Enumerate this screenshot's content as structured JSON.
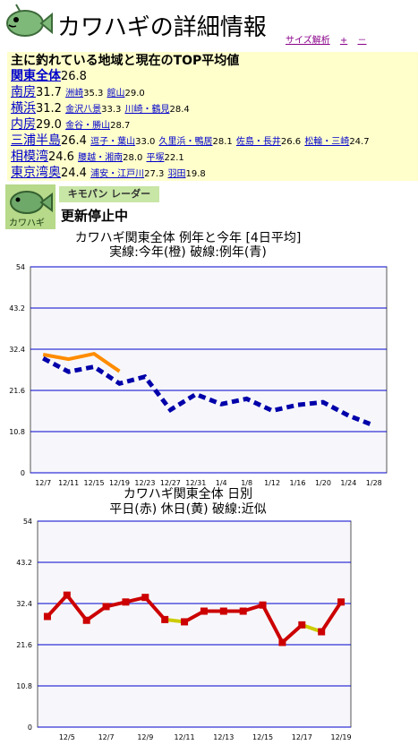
{
  "header": {
    "title": "カワハギの詳細情報",
    "links": [
      "サイズ解析",
      "+",
      "－"
    ]
  },
  "summary": {
    "heading": "主に釣れている地域と現在のTOP平均値",
    "rows": [
      {
        "area": "関東全体",
        "value": "26.8",
        "subs": []
      },
      {
        "area": "南房",
        "value": "31.7",
        "subs": [
          {
            "name": "洲崎",
            "value": "35.3"
          },
          {
            "name": "館山",
            "value": "29.0"
          }
        ]
      },
      {
        "area": "横浜",
        "value": "31.2",
        "subs": [
          {
            "name": "金沢八景",
            "value": "33.3"
          },
          {
            "name": "川崎・鶴見",
            "value": "28.4"
          }
        ]
      },
      {
        "area": "内房",
        "value": "29.0",
        "subs": [
          {
            "name": "金谷・勝山",
            "value": "28.7"
          }
        ]
      },
      {
        "area": "三浦半島",
        "value": "26.4",
        "subs": [
          {
            "name": "逗子・葉山",
            "value": "33.0"
          },
          {
            "name": "久里浜・鴨居",
            "value": "28.1"
          },
          {
            "name": "佐島・長井",
            "value": "26.6"
          },
          {
            "name": "松輪・三崎",
            "value": "24.7"
          }
        ]
      },
      {
        "area": "相模湾",
        "value": "24.6",
        "subs": [
          {
            "name": "腰越・湘南",
            "value": "28.0"
          },
          {
            "name": "平塚",
            "value": "22.1"
          }
        ]
      },
      {
        "area": "東京湾奥",
        "value": "24.4",
        "subs": [
          {
            "name": "浦安・江戸川",
            "value": "27.3"
          },
          {
            "name": "羽田",
            "value": "19.8"
          }
        ]
      }
    ]
  },
  "radar": {
    "logo_text": "カワハギ",
    "title": "キモパン レーダー",
    "status": "更新停止中"
  },
  "chart_data": [
    {
      "type": "line",
      "title": "カワハギ関東全体 例年と今年 [4日平均]",
      "subtitle": "実線:今年(橙) 破線:例年(青)",
      "ylim": [
        0,
        54
      ],
      "yticks": [
        "0",
        "10.8",
        "21.6",
        "32.4",
        "43.2",
        "54"
      ],
      "xticks": [
        "12/7",
        "12/11",
        "12/15",
        "12/19",
        "12/23",
        "12/27",
        "12/31",
        "1/4",
        "1/8",
        "1/12",
        "1/16",
        "1/20",
        "1/24",
        "1/28"
      ],
      "grid": true,
      "series": [
        {
          "style": "solid",
          "color": "#ff8c00",
          "values": [
            31.0,
            29.8,
            31.2,
            26.6
          ]
        },
        {
          "style": "dashed",
          "color": "#0000aa",
          "values": [
            30.0,
            26.5,
            27.8,
            23.4,
            25.2,
            16.5,
            20.6,
            18.0,
            19.4,
            16.3,
            17.8,
            18.5,
            15.0,
            12.4
          ]
        }
      ]
    },
    {
      "type": "line",
      "title": "カワハギ関東全体 日別",
      "subtitle": "平日(赤) 休日(黄) 破線:近似",
      "ylim": [
        0,
        54
      ],
      "yticks": [
        "0",
        "10.8",
        "21.6",
        "32.4",
        "43.2",
        "54"
      ],
      "xticks": [
        "12/5",
        "12/7",
        "12/9",
        "12/11",
        "12/13",
        "12/15",
        "12/17",
        "12/19"
      ],
      "grid": true,
      "categories": [
        "12/4",
        "12/5",
        "12/6",
        "12/7",
        "12/8",
        "12/9",
        "12/10",
        "12/11",
        "12/12",
        "12/13",
        "12/14",
        "12/15",
        "12/16",
        "12/17",
        "12/18",
        "12/19"
      ],
      "values": [
        29.0,
        34.6,
        28.0,
        31.6,
        32.8,
        34.0,
        28.2,
        27.6,
        30.4,
        30.4,
        30.4,
        32.0,
        22.2,
        26.8,
        25.0,
        32.8
      ],
      "holidays": [
        "12/11",
        "12/18"
      ],
      "colors": {
        "weekday": "#cc0000",
        "holiday": "#cccc00"
      }
    }
  ]
}
